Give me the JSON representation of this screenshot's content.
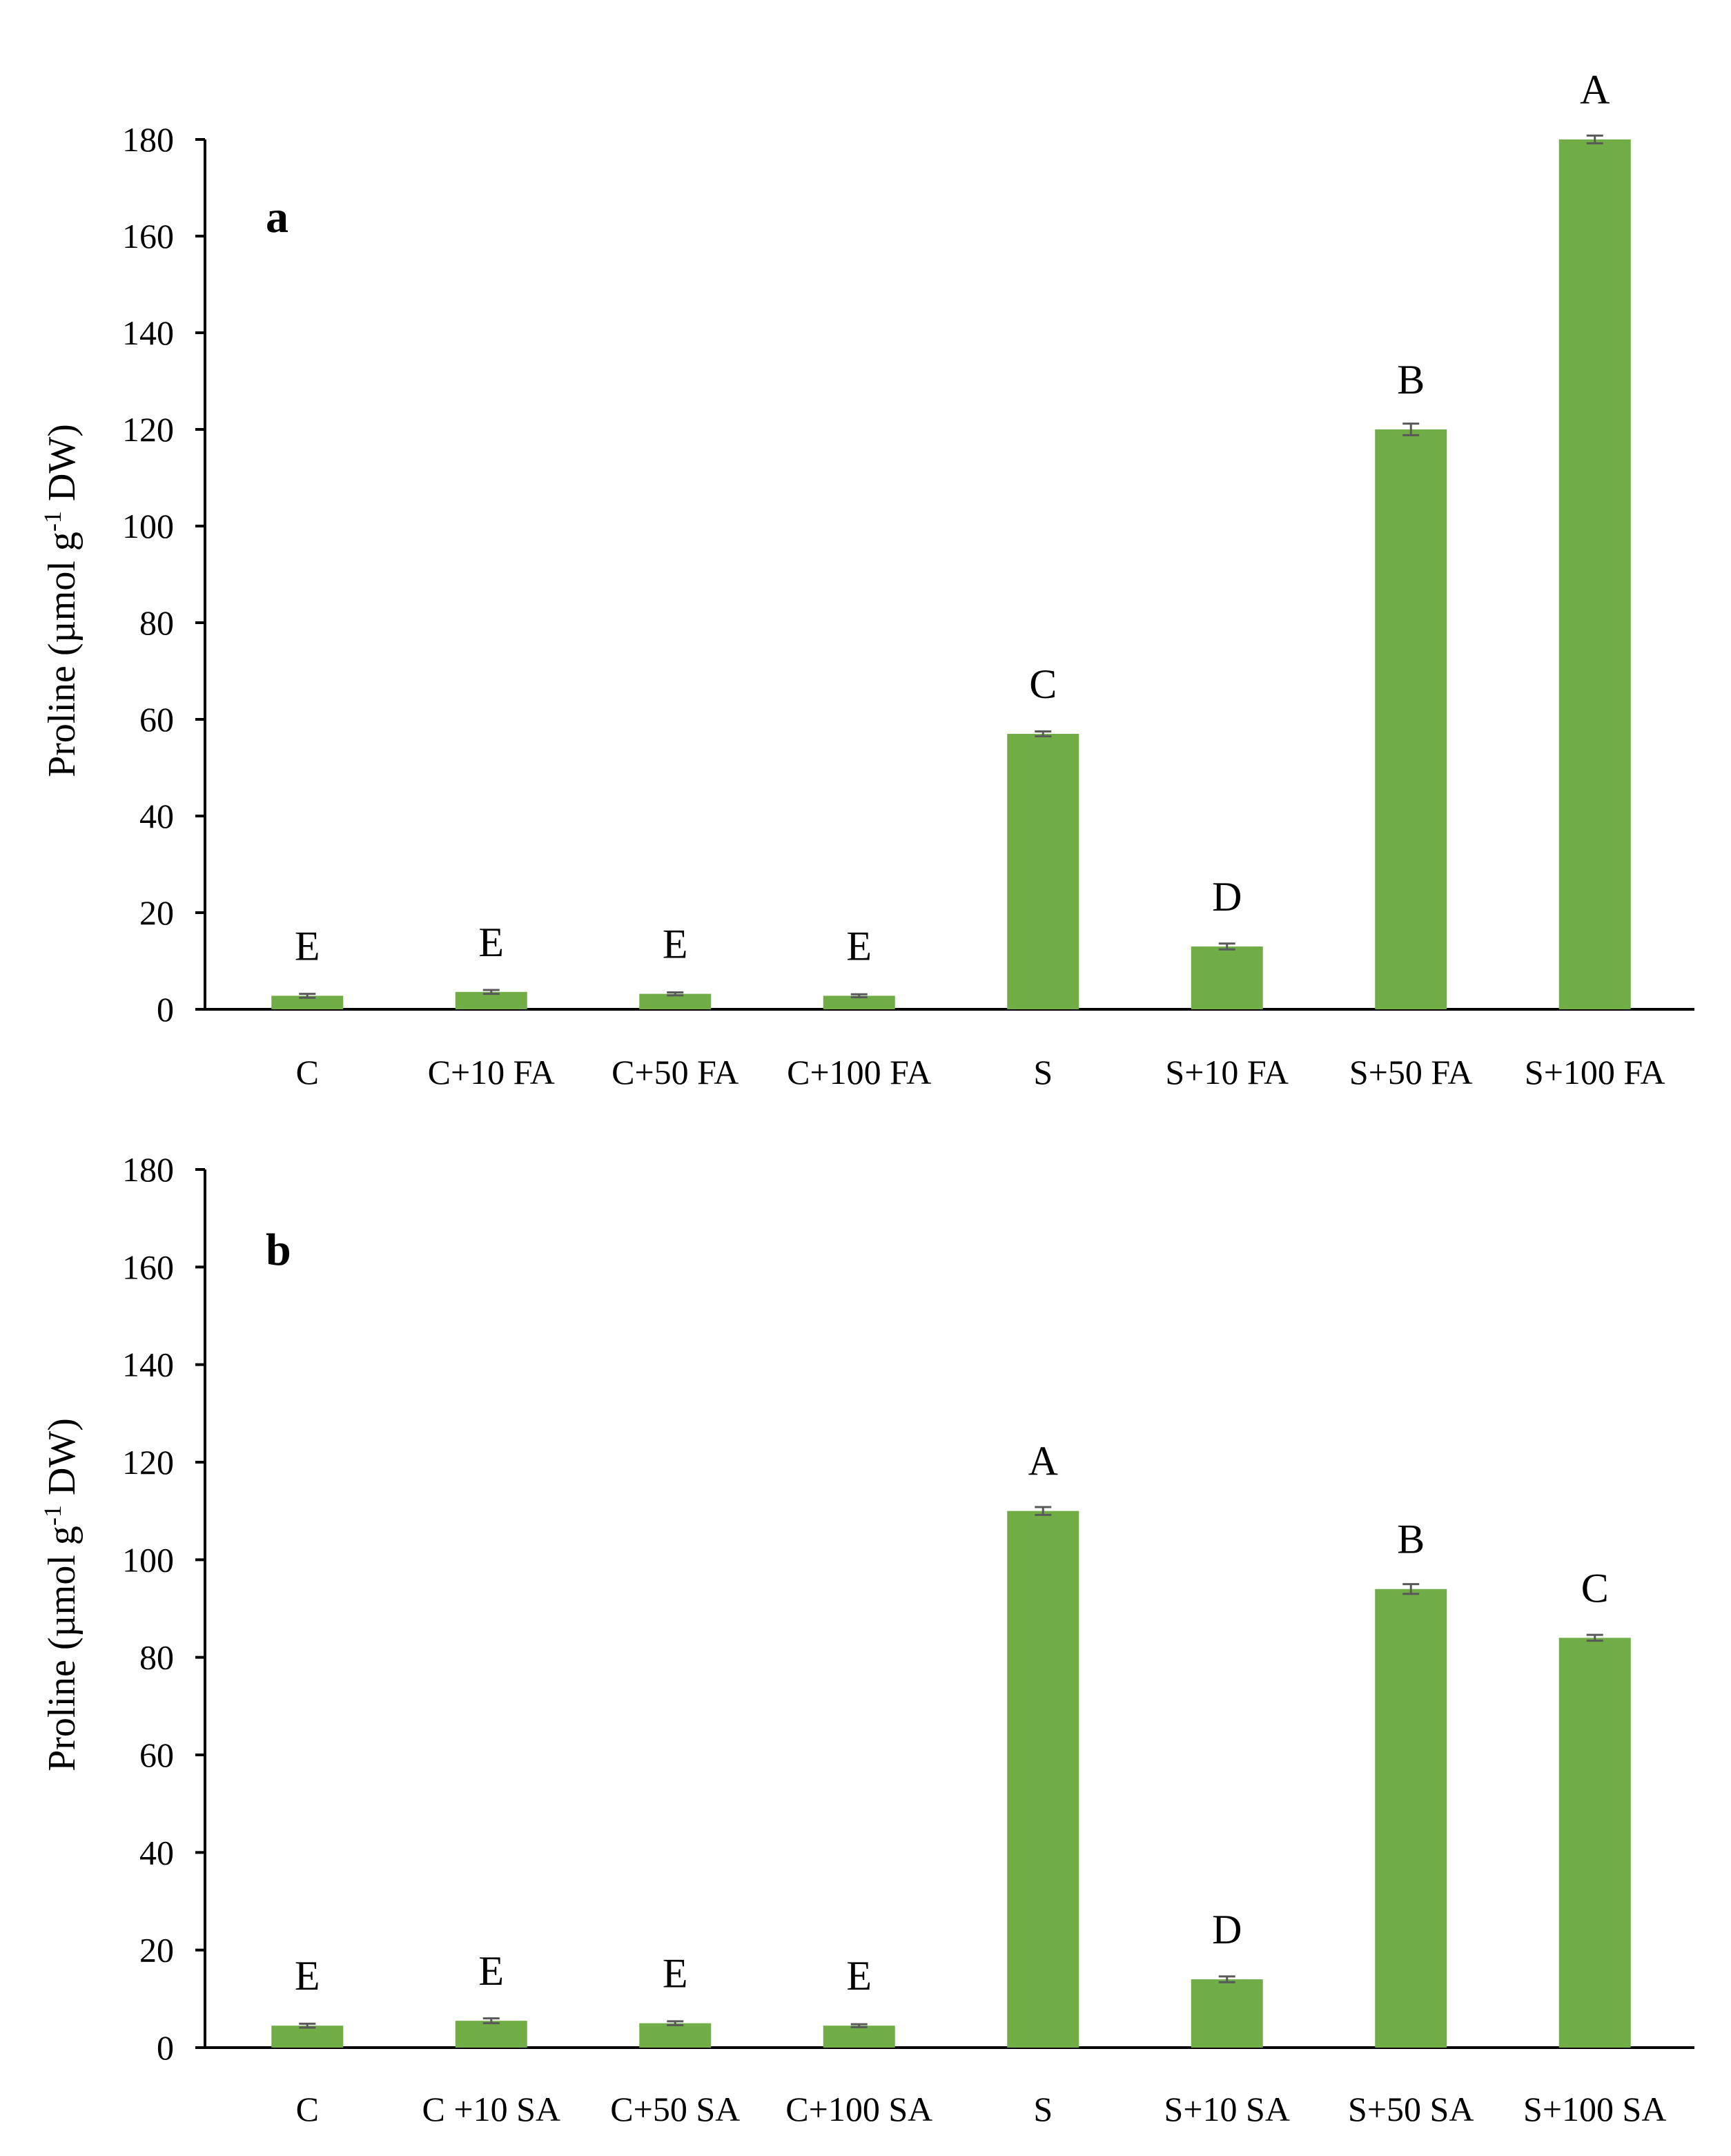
{
  "colors": {
    "bar": "#70AD47",
    "error_bar": "#595959",
    "axis": "#000000",
    "background": "#ffffff"
  },
  "chart_data": [
    {
      "type": "bar",
      "panel_label": "a",
      "title": "",
      "xlabel": "",
      "ylabel": "Proline (µmol g",
      "ylabel_sup": "-1",
      "ylabel_tail": " DW)",
      "ylim": [
        0,
        180
      ],
      "yticks": [
        "0",
        "20",
        "40",
        "60",
        "80",
        "100",
        "120",
        "140",
        "160",
        "180"
      ],
      "grid": false,
      "categories": [
        "C",
        "C+10 FA",
        "C+50 FA",
        "C+100 FA",
        "S",
        "S+10 FA",
        "S+50 FA",
        "S+100 FA"
      ],
      "values": [
        2.8,
        3.6,
        3.2,
        2.8,
        57,
        13,
        120,
        180
      ],
      "errors": [
        0.4,
        0.4,
        0.3,
        0.3,
        0.5,
        0.6,
        1.2,
        0.8
      ],
      "significance": [
        "E",
        "E",
        "E",
        "E",
        "C",
        "D",
        "B",
        "A"
      ]
    },
    {
      "type": "bar",
      "panel_label": "b",
      "title": "",
      "xlabel": "",
      "ylabel": "Proline (µmol g",
      "ylabel_sup": "-1",
      "ylabel_tail": " DW)",
      "ylim": [
        0,
        180
      ],
      "yticks": [
        "0",
        "20",
        "40",
        "60",
        "80",
        "100",
        "120",
        "140",
        "160",
        "180"
      ],
      "grid": false,
      "categories": [
        "C",
        "C +10 SA",
        "C+50 SA",
        "C+100 SA",
        "S",
        "S+10 SA",
        "S+50 SA",
        "S+100 SA"
      ],
      "values": [
        4.5,
        5.5,
        5,
        4.5,
        110,
        14,
        94,
        84
      ],
      "errors": [
        0.4,
        0.5,
        0.4,
        0.3,
        0.8,
        0.6,
        1.0,
        0.6
      ],
      "significance": [
        "E",
        "E",
        "E",
        "E",
        "A",
        "D",
        "B",
        "C"
      ]
    }
  ]
}
